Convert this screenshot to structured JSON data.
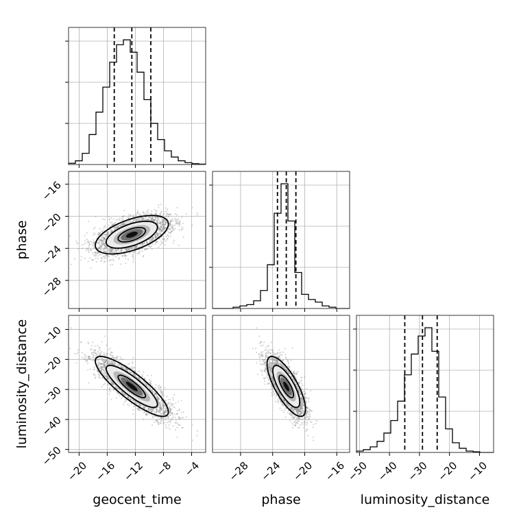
{
  "chart_data": {
    "type": "corner",
    "parameters": [
      "geocent_time",
      "phase",
      "luminosity_distance"
    ],
    "ranges": {
      "geocent_time": [
        -21.5,
        -2.0
      ],
      "phase": [
        -31.5,
        -14.4
      ],
      "luminosity_distance": [
        -51.0,
        -5.3
      ]
    },
    "ticks": {
      "geocent_time": [
        -20,
        -16,
        -12,
        -8,
        -4
      ],
      "phase": [
        -28,
        -24,
        -20,
        -16
      ],
      "luminosity_distance": [
        -50,
        -40,
        -30,
        -20,
        -10
      ]
    },
    "tick_labels": {
      "geocent_time": [
        "−20",
        "−16",
        "−12",
        "−8",
        "−4"
      ],
      "phase": [
        "−28",
        "−24",
        "−20",
        "−16"
      ],
      "luminosity_distance": [
        "−50",
        "−40",
        "−30",
        "−20",
        "−10"
      ]
    },
    "grid": true,
    "samples": {
      "geocent_time": {
        "mean": -12.5,
        "sd": 2.6
      },
      "phase": {
        "mean": -22.3,
        "sd": 1.2
      },
      "luminosity_distance": {
        "mean": -29.0,
        "sd": 5.0
      },
      "correlations": {
        "phase|geocent_time": 0.55,
        "luminosity_distance|geocent_time": -0.85,
        "luminosity_distance|phase": -0.75
      }
    },
    "histograms": {
      "geocent_time": {
        "bin_edges": [
          -21.5,
          -20.525,
          -19.55,
          -18.575,
          -17.6,
          -16.625,
          -15.65,
          -14.675,
          -13.7,
          -12.725,
          -11.75,
          -10.775,
          -9.8,
          -8.825,
          -7.85,
          -6.875,
          -5.9,
          -4.925,
          -3.95,
          -2.975,
          -2.0
        ],
        "counts": [
          1,
          3,
          9,
          24,
          42,
          62,
          82,
          96,
          100,
          90,
          74,
          52,
          33,
          20,
          11,
          6,
          3,
          1.5,
          0.7,
          0.3
        ],
        "quantiles": [
          -15.0,
          -12.5,
          -9.8
        ]
      },
      "phase": {
        "bin_edges": [
          -31.5,
          -30.645,
          -29.79,
          -28.935,
          -28.08,
          -27.225,
          -26.37,
          -25.515,
          -24.66,
          -23.805,
          -22.95,
          -22.095,
          -21.24,
          -20.385,
          -19.53,
          -18.675,
          -17.82,
          -16.965,
          -16.11,
          -15.255,
          -14.4
        ],
        "counts": [
          0,
          0,
          0,
          1,
          2,
          3,
          6,
          14,
          34,
          74,
          97,
          68,
          28,
          11,
          7,
          5,
          2,
          1,
          0,
          0
        ],
        "quantiles": [
          -23.4,
          -22.3,
          -21.1
        ]
      },
      "luminosity_distance": {
        "bin_edges": [
          -51.0,
          -48.715,
          -46.43,
          -44.145,
          -41.86,
          -39.575,
          -37.29,
          -35.005,
          -32.72,
          -30.435,
          -28.15,
          -25.865,
          -23.58,
          -21.295,
          -19.01,
          -16.725,
          -14.44,
          -12.155,
          -9.87,
          -7.585,
          -5.3
        ],
        "counts": [
          1,
          2,
          4,
          8,
          14,
          23,
          37,
          56,
          71,
          84,
          90,
          73,
          40,
          17,
          7,
          3,
          1,
          0.5,
          0,
          0
        ],
        "quantiles": [
          -34.9,
          -29.0,
          -24.1
        ]
      }
    }
  }
}
